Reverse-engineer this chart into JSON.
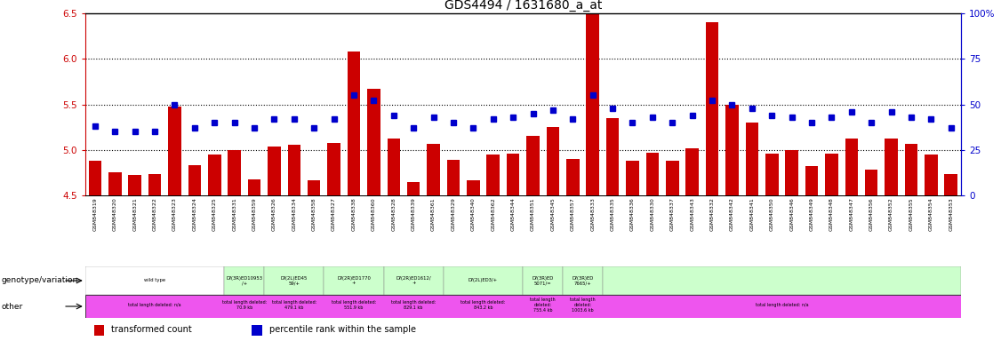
{
  "title": "GDS4494 / 1631680_a_at",
  "ylim_left": [
    4.5,
    6.5
  ],
  "ylim_right": [
    0,
    100
  ],
  "yticks_left": [
    4.5,
    5.0,
    5.5,
    6.0,
    6.5
  ],
  "yticks_right": [
    0,
    25,
    50,
    75,
    100
  ],
  "bar_color": "#cc0000",
  "dot_color": "#0000cc",
  "samples": [
    "GSM848319",
    "GSM848320",
    "GSM848321",
    "GSM848322",
    "GSM848323",
    "GSM848324",
    "GSM848325",
    "GSM848331",
    "GSM848359",
    "GSM848326",
    "GSM848334",
    "GSM848358",
    "GSM848327",
    "GSM848338",
    "GSM848360",
    "GSM848328",
    "GSM848339",
    "GSM848361",
    "GSM848329",
    "GSM848340",
    "GSM848362",
    "GSM848344",
    "GSM848351",
    "GSM848345",
    "GSM848357",
    "GSM848333",
    "GSM848335",
    "GSM848336",
    "GSM848330",
    "GSM848337",
    "GSM848343",
    "GSM848332",
    "GSM848342",
    "GSM848341",
    "GSM848350",
    "GSM848346",
    "GSM848349",
    "GSM848348",
    "GSM848347",
    "GSM848356",
    "GSM848352",
    "GSM848355",
    "GSM848354",
    "GSM848353"
  ],
  "bar_values": [
    4.88,
    4.75,
    4.72,
    4.73,
    5.48,
    4.83,
    4.95,
    5.0,
    4.68,
    5.04,
    5.06,
    4.67,
    5.08,
    6.08,
    5.67,
    5.12,
    4.65,
    5.07,
    4.89,
    4.67,
    4.95,
    4.96,
    5.15,
    5.25,
    4.9,
    6.5,
    5.35,
    4.88,
    4.97,
    4.88,
    5.02,
    6.4,
    5.5,
    5.3,
    4.96,
    5.0,
    4.82,
    4.96,
    5.12,
    4.78,
    5.12,
    5.07,
    4.95,
    4.73
  ],
  "dot_values_pct": [
    38,
    35,
    35,
    35,
    50,
    37,
    40,
    40,
    37,
    42,
    42,
    37,
    42,
    55,
    52,
    44,
    37,
    43,
    40,
    37,
    42,
    43,
    45,
    47,
    42,
    55,
    48,
    40,
    43,
    40,
    44,
    52,
    50,
    48,
    44,
    43,
    40,
    43,
    46,
    40,
    46,
    43,
    42,
    37
  ],
  "genotype_groups": [
    {
      "label": "wild type",
      "start": 0,
      "end": 7,
      "color": "#ffffff"
    },
    {
      "label": "Df(3R)ED10953\n/+",
      "start": 7,
      "end": 9,
      "color": "#ccffcc"
    },
    {
      "label": "Df(2L)ED45\n59/+",
      "start": 9,
      "end": 12,
      "color": "#ccffcc"
    },
    {
      "label": "Df(2R)ED1770\n+",
      "start": 12,
      "end": 15,
      "color": "#ccffcc"
    },
    {
      "label": "Df(2R)ED1612/\n+",
      "start": 15,
      "end": 18,
      "color": "#ccffcc"
    },
    {
      "label": "Df(2L)ED3/+",
      "start": 18,
      "end": 22,
      "color": "#ccffcc"
    },
    {
      "label": "Df(3R)ED\n5071/=",
      "start": 22,
      "end": 24,
      "color": "#ccffcc"
    },
    {
      "label": "Df(3R)ED\n7665/+",
      "start": 24,
      "end": 26,
      "color": "#ccffcc"
    },
    {
      "label": "",
      "start": 26,
      "end": 44,
      "color": "#ccffcc"
    }
  ],
  "other_groups": [
    {
      "label": "total length deleted: n/a",
      "start": 0,
      "end": 7
    },
    {
      "label": "total length deleted:\n70.9 kb",
      "start": 7,
      "end": 9
    },
    {
      "label": "total length deleted:\n479.1 kb",
      "start": 9,
      "end": 12
    },
    {
      "label": "total length deleted:\n551.9 kb",
      "start": 12,
      "end": 15
    },
    {
      "label": "total length deleted:\n829.1 kb",
      "start": 15,
      "end": 18
    },
    {
      "label": "total length deleted:\n843.2 kb",
      "start": 18,
      "end": 22
    },
    {
      "label": "total length\ndeleted:\n755.4 kb",
      "start": 22,
      "end": 24
    },
    {
      "label": "total length\ndeleted:\n1003.6 kb",
      "start": 24,
      "end": 26
    },
    {
      "label": "total length deleted: n/a",
      "start": 26,
      "end": 44
    }
  ],
  "other_bg": "#ee55ee",
  "left_axis_color": "#cc0000",
  "right_axis_color": "#0000cc",
  "sample_bg": "#d8d8d8",
  "genotype_label": "genotype/variation",
  "other_label": "other",
  "legend_bar": "transformed count",
  "legend_dot": "percentile rank within the sample"
}
